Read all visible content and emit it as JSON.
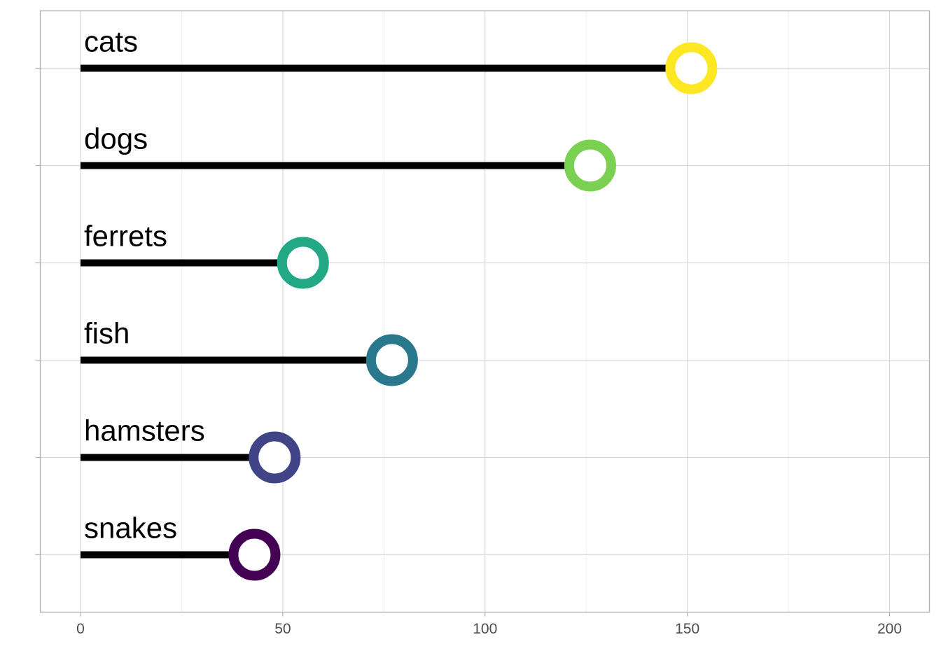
{
  "chart_data": {
    "type": "lollipop",
    "orientation": "horizontal",
    "categories": [
      "cats",
      "dogs",
      "ferrets",
      "fish",
      "hamsters",
      "snakes"
    ],
    "values": [
      151,
      126,
      55,
      77,
      48,
      43
    ],
    "colors": [
      "#FDE725",
      "#7AD151",
      "#22A884",
      "#2A788E",
      "#414487",
      "#440154"
    ],
    "xlim": [
      0,
      200
    ],
    "x_ticks": [
      0,
      50,
      100,
      150,
      200
    ],
    "x_tick_labels": [
      "0",
      "50",
      "100",
      "150",
      "200"
    ],
    "grid": true,
    "legend": "none",
    "title": "",
    "xlabel": "",
    "ylabel": ""
  }
}
